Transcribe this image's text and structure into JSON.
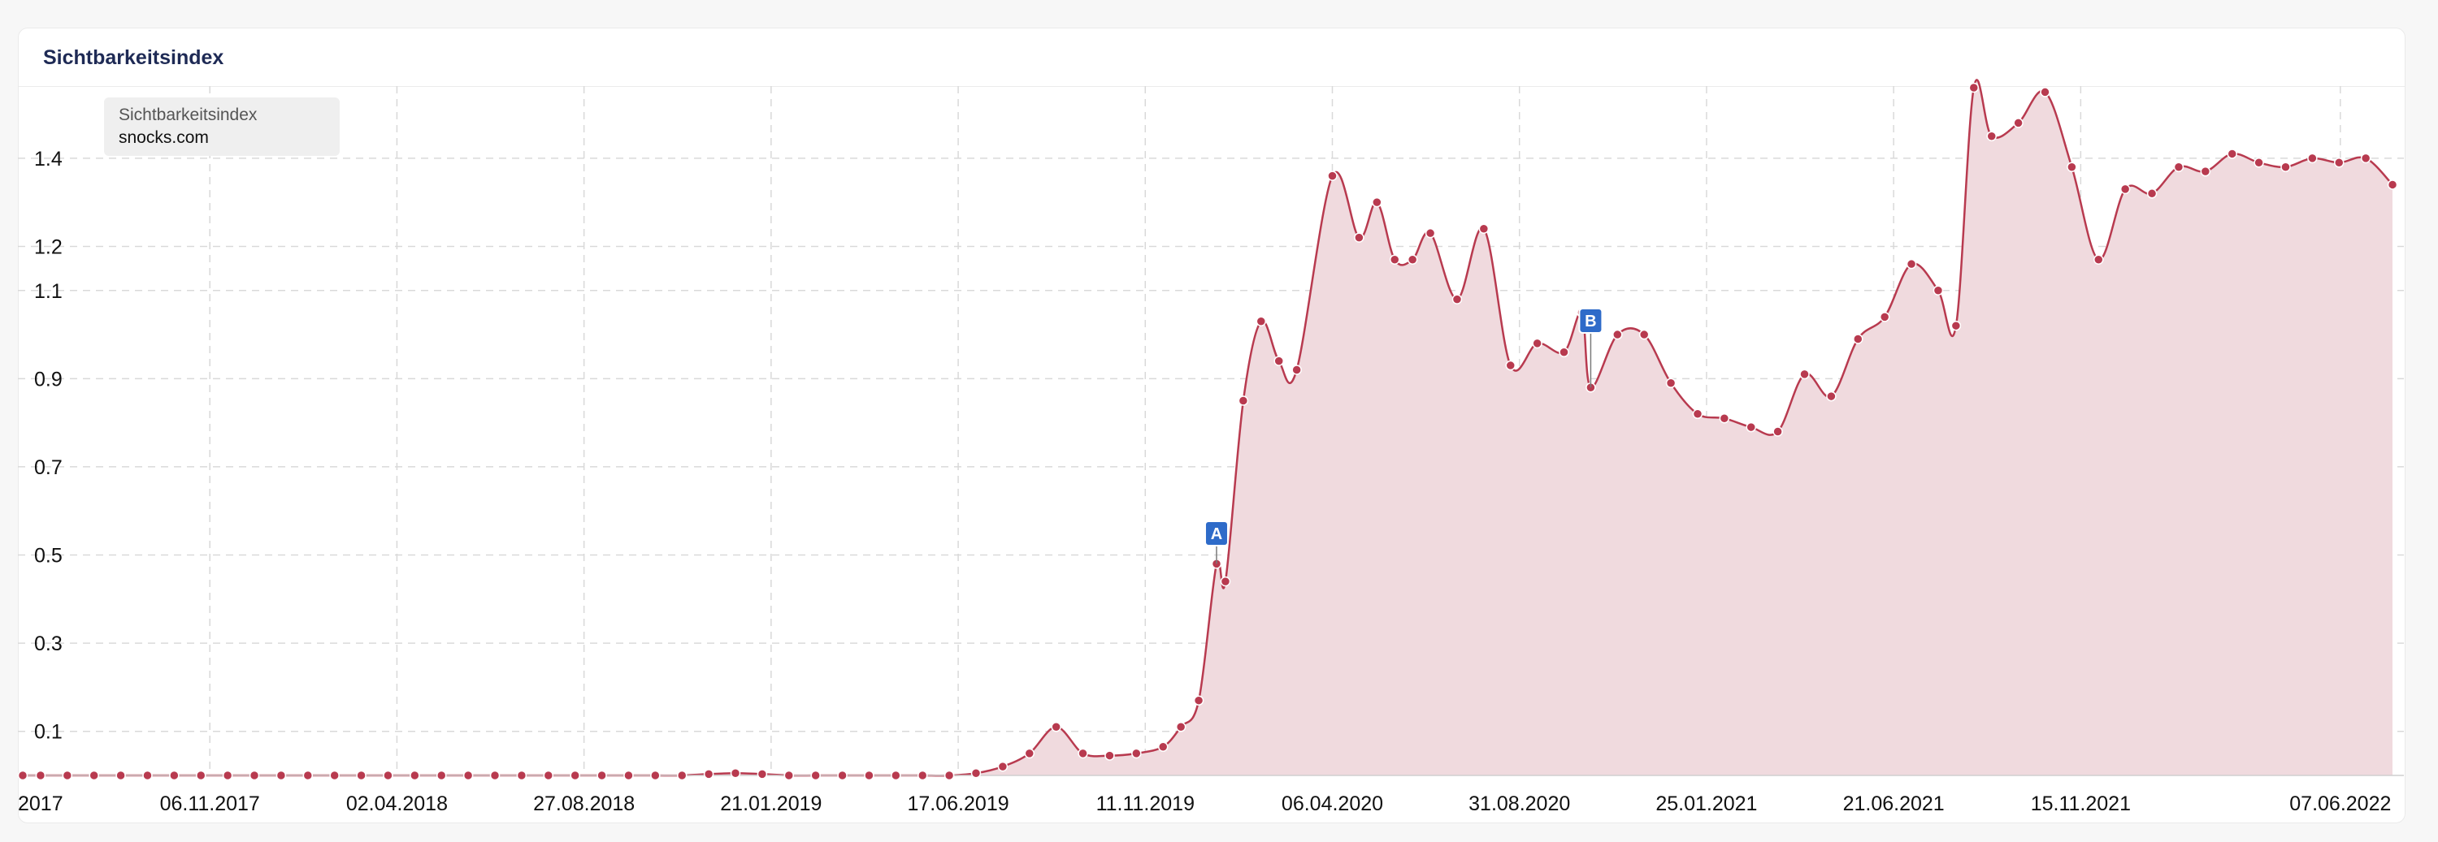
{
  "card": {
    "title": "Sichtbarkeitsindex"
  },
  "legend": {
    "title": "Sichtbarkeitsindex",
    "domain": "snocks.com"
  },
  "colors": {
    "line": "#b83a4f",
    "fill": "#f0dade",
    "marker": "#2e6bc9",
    "grid": "#d9d9d9"
  },
  "chart_data": {
    "type": "area",
    "xlabel": "",
    "ylabel": "",
    "grid": true,
    "legend_placement": "top-left",
    "ylim": [
      0,
      1.56
    ],
    "y_ticks": [
      0.1,
      0.3,
      0.5,
      0.7,
      0.9,
      1.1,
      1.2,
      1.4
    ],
    "y_tick_labels": [
      "0.1",
      "0.3",
      "0.5",
      "0.7",
      "0.9",
      "1.1",
      "1.2",
      "1.4"
    ],
    "x_range": [
      "2017-06-12",
      "2022-07-25"
    ],
    "x_ticks": [
      "2017-06-12",
      "2017-11-06",
      "2018-04-02",
      "2018-08-27",
      "2019-01-21",
      "2019-06-17",
      "2019-11-11",
      "2020-04-06",
      "2020-08-31",
      "2021-01-25",
      "2021-06-21",
      "2021-11-15",
      "2022-06-07"
    ],
    "x_tick_labels": [
      "2017",
      "06.11.2017",
      "02.04.2018",
      "27.08.2018",
      "21.01.2019",
      "17.06.2019",
      "11.11.2019",
      "06.04.2020",
      "31.08.2020",
      "25.01.2021",
      "21.06.2021",
      "15.11.2021",
      "07.06.2022"
    ],
    "series": [
      {
        "points": [
          [
            "2017-06-12",
            0.0
          ],
          [
            "2017-06-26",
            0.0
          ],
          [
            "2017-07-17",
            0.0
          ],
          [
            "2017-08-07",
            0.0
          ],
          [
            "2017-08-28",
            0.0
          ],
          [
            "2017-09-18",
            0.0
          ],
          [
            "2017-10-09",
            0.0
          ],
          [
            "2017-10-30",
            0.0
          ],
          [
            "2017-11-20",
            0.0
          ],
          [
            "2017-12-11",
            0.0
          ],
          [
            "2018-01-01",
            0.0
          ],
          [
            "2018-01-22",
            0.0
          ],
          [
            "2018-02-12",
            0.0
          ],
          [
            "2018-03-05",
            0.0
          ],
          [
            "2018-03-26",
            0.0
          ],
          [
            "2018-04-16",
            0.0
          ],
          [
            "2018-05-07",
            0.0
          ],
          [
            "2018-05-28",
            0.0
          ],
          [
            "2018-06-18",
            0.0
          ],
          [
            "2018-07-09",
            0.0
          ],
          [
            "2018-07-30",
            0.0
          ],
          [
            "2018-08-20",
            0.0
          ],
          [
            "2018-09-10",
            0.0
          ],
          [
            "2018-10-01",
            0.0
          ],
          [
            "2018-10-22",
            0.0
          ],
          [
            "2018-11-12",
            0.0
          ],
          [
            "2018-12-03",
            0.003
          ],
          [
            "2018-12-24",
            0.005
          ],
          [
            "2019-01-14",
            0.003
          ],
          [
            "2019-02-04",
            0.0
          ],
          [
            "2019-02-25",
            0.0
          ],
          [
            "2019-03-18",
            0.0
          ],
          [
            "2019-04-08",
            0.0
          ],
          [
            "2019-04-29",
            0.0
          ],
          [
            "2019-05-20",
            0.0
          ],
          [
            "2019-06-10",
            0.0
          ],
          [
            "2019-07-01",
            0.005
          ],
          [
            "2019-07-22",
            0.02
          ],
          [
            "2019-08-12",
            0.05
          ],
          [
            "2019-09-02",
            0.11
          ],
          [
            "2019-09-23",
            0.05
          ],
          [
            "2019-10-14",
            0.045
          ],
          [
            "2019-11-04",
            0.05
          ],
          [
            "2019-11-25",
            0.065
          ],
          [
            "2019-12-09",
            0.11
          ],
          [
            "2019-12-23",
            0.17
          ],
          [
            "2020-01-06",
            0.48
          ],
          [
            "2020-01-13",
            0.44
          ],
          [
            "2020-01-27",
            0.85
          ],
          [
            "2020-02-10",
            1.03
          ],
          [
            "2020-02-24",
            0.94
          ],
          [
            "2020-03-09",
            0.92
          ],
          [
            "2020-04-06",
            1.36
          ],
          [
            "2020-04-27",
            1.22
          ],
          [
            "2020-05-11",
            1.3
          ],
          [
            "2020-05-25",
            1.17
          ],
          [
            "2020-06-08",
            1.17
          ],
          [
            "2020-06-22",
            1.23
          ],
          [
            "2020-07-13",
            1.08
          ],
          [
            "2020-08-03",
            1.24
          ],
          [
            "2020-08-24",
            0.93
          ],
          [
            "2020-09-14",
            0.98
          ],
          [
            "2020-10-05",
            0.96
          ],
          [
            "2020-10-19",
            1.05
          ],
          [
            "2020-10-26",
            0.88
          ],
          [
            "2020-11-16",
            1.0
          ],
          [
            "2020-12-07",
            1.0
          ],
          [
            "2020-12-28",
            0.89
          ],
          [
            "2021-01-18",
            0.82
          ],
          [
            "2021-02-08",
            0.81
          ],
          [
            "2021-03-01",
            0.79
          ],
          [
            "2021-03-22",
            0.78
          ],
          [
            "2021-04-12",
            0.91
          ],
          [
            "2021-05-03",
            0.86
          ],
          [
            "2021-05-24",
            0.99
          ],
          [
            "2021-06-14",
            1.04
          ],
          [
            "2021-07-05",
            1.16
          ],
          [
            "2021-07-26",
            1.1
          ],
          [
            "2021-08-09",
            1.02
          ],
          [
            "2021-08-23",
            1.56
          ],
          [
            "2021-09-06",
            1.45
          ],
          [
            "2021-09-27",
            1.48
          ],
          [
            "2021-10-18",
            1.55
          ],
          [
            "2021-11-08",
            1.38
          ],
          [
            "2021-11-29",
            1.17
          ],
          [
            "2021-12-20",
            1.33
          ],
          [
            "2022-01-10",
            1.32
          ],
          [
            "2022-01-31",
            1.38
          ],
          [
            "2022-02-21",
            1.37
          ],
          [
            "2022-03-14",
            1.41
          ],
          [
            "2022-04-04",
            1.39
          ],
          [
            "2022-04-25",
            1.38
          ],
          [
            "2022-05-16",
            1.4
          ],
          [
            "2022-06-06",
            1.39
          ],
          [
            "2022-06-27",
            1.4
          ],
          [
            "2022-07-18",
            1.34
          ]
        ]
      }
    ],
    "annotations": [
      {
        "label": "A",
        "date": "2020-01-06",
        "value": 0.48
      },
      {
        "label": "B",
        "date": "2020-10-26",
        "value": 0.88
      }
    ]
  }
}
